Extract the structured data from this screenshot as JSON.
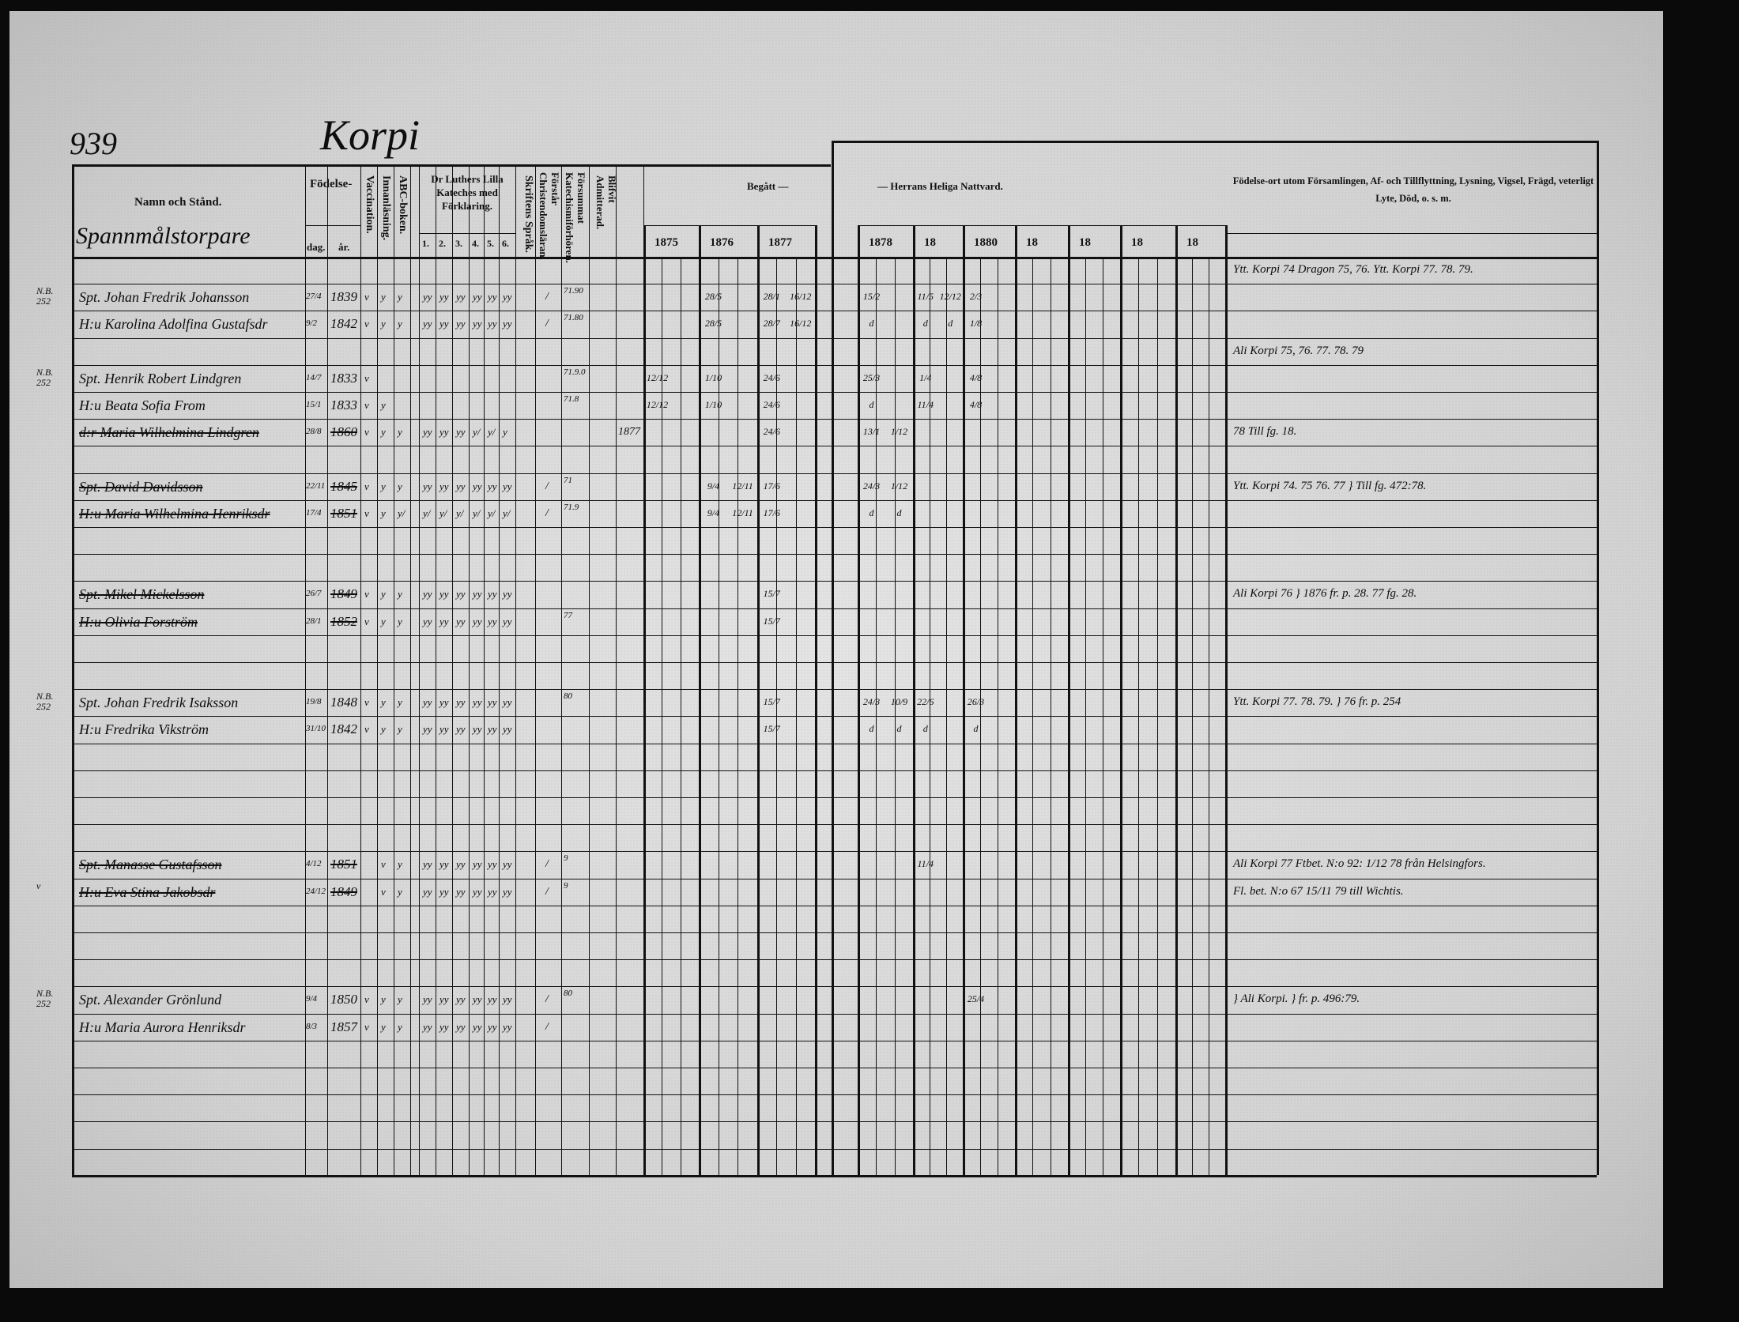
{
  "page": {
    "number": "939",
    "village": "Korpi",
    "category": "Spannmålstorpare"
  },
  "headers": {
    "name": "Namn och Stånd.",
    "birth": "Födelse-",
    "birth_day": "dag.",
    "birth_year": "år.",
    "vaccination": "Vaccination.",
    "reading": "Innanläsning.",
    "abc": "ABC-boken.",
    "catechism": "Dr Luthers Lilla Kateches med Förklaring.",
    "catechism_parts": [
      "1.",
      "2.",
      "3.",
      "4.",
      "5.",
      "6."
    ],
    "scripture_language": "Skriftens Språk.",
    "understands": "Förstår Christendomsläran.",
    "confirmation_school": "Försummat Katechismiförhören.",
    "admitted": "Blifvit Admitterad.",
    "communion_left": "Begått —",
    "communion_right": "— Herrans Heliga Nattvard.",
    "years_left": [
      "1875",
      "1876",
      "1877"
    ],
    "years_right": [
      "1878",
      "18",
      "1880",
      "18",
      "18",
      "18",
      "18"
    ],
    "remarks": "Födelse-ort utom Församlingen, Af- och Tillflyttning, Lysning, Vigsel, Frägd, veterligt Lyte, Död, o. s. m."
  },
  "margin_notes": [
    {
      "row": 1,
      "text": "N.B. 252"
    },
    {
      "row": 4,
      "text": "N.B. 252"
    },
    {
      "row": 16,
      "text": "N.B. 252"
    },
    {
      "row": 23,
      "text": "v"
    },
    {
      "row": 27,
      "text": "N.B. 252"
    }
  ],
  "persons": [
    {
      "row": 1,
      "name": "Spt. Johan Fredrik Johansson",
      "struck": false,
      "day": "27/4",
      "year": "1839",
      "marks": [
        "v",
        "y",
        "y",
        "yy",
        "yy",
        "yy",
        "yy",
        "yy",
        "yy"
      ],
      "understands": "/",
      "missed": "71.90"
    },
    {
      "row": 2,
      "name": "H:u Karolina Adolfina Gustafsdr",
      "struck": false,
      "day": "9/2",
      "year": "1842",
      "marks": [
        "v",
        "y",
        "y",
        "yy",
        "yy",
        "yy",
        "yy",
        "yy",
        "yy"
      ],
      "understands": "/",
      "missed": "71.80"
    },
    {
      "row": 4,
      "name": "Spt. Henrik Robert Lindgren",
      "struck": false,
      "day": "14/7",
      "year": "1833",
      "marks": [
        "v",
        "",
        "",
        "",
        "",
        "",
        "",
        "",
        ""
      ],
      "understands": "",
      "missed": "71.9.0"
    },
    {
      "row": 5,
      "name": "H:u Beata Sofia From",
      "struck": false,
      "day": "15/1",
      "year": "1833",
      "marks": [
        "v",
        "y",
        "",
        "",
        "",
        "",
        "",
        "",
        ""
      ],
      "understands": "",
      "missed": "71.8"
    },
    {
      "row": 6,
      "name": "d:r Maria Wilhelmina Lindgren",
      "struck": true,
      "day": "28/8",
      "year": "1860",
      "marks": [
        "v",
        "y",
        "y",
        "yy",
        "yy",
        "yy",
        "y/",
        "y/",
        "y"
      ],
      "understands": "",
      "missed": "",
      "admitted": "1877"
    },
    {
      "row": 8,
      "name": "Spt. David Davidsson",
      "struck": true,
      "day": "22/11",
      "year": "1845",
      "marks": [
        "v",
        "y",
        "y",
        "yy",
        "yy",
        "yy",
        "yy",
        "yy",
        "yy"
      ],
      "understands": "/",
      "missed": "71"
    },
    {
      "row": 9,
      "name": "H:u Maria Wilhelmina Henriksdr",
      "struck": true,
      "day": "17/4",
      "year": "1851",
      "marks": [
        "v",
        "y",
        "y/",
        "y/",
        "y/",
        "y/",
        "y/",
        "y/",
        "y/"
      ],
      "understands": "/",
      "missed": "71.9"
    },
    {
      "row": 12,
      "name": "Spt. Mikel Mickelsson",
      "struck": true,
      "day": "26/7",
      "year": "1849",
      "marks": [
        "v",
        "y",
        "y",
        "yy",
        "yy",
        "yy",
        "yy",
        "yy",
        "yy"
      ],
      "understands": "",
      "missed": ""
    },
    {
      "row": 13,
      "name": "H:u Olivia Forström",
      "struck": true,
      "day": "28/1",
      "year": "1852",
      "marks": [
        "v",
        "y",
        "y",
        "yy",
        "yy",
        "yy",
        "yy",
        "yy",
        "yy"
      ],
      "understands": "",
      "missed": "77"
    },
    {
      "row": 16,
      "name": "Spt. Johan Fredrik Isaksson",
      "struck": false,
      "day": "19/8",
      "year": "1848",
      "marks": [
        "v",
        "y",
        "y",
        "yy",
        "yy",
        "yy",
        "yy",
        "yy",
        "yy"
      ],
      "understands": "",
      "missed": "80"
    },
    {
      "row": 17,
      "name": "H:u Fredrika Vikström",
      "struck": false,
      "day": "31/10",
      "year": "1842",
      "marks": [
        "v",
        "y",
        "y",
        "yy",
        "yy",
        "yy",
        "yy",
        "yy",
        "yy"
      ],
      "understands": "",
      "missed": ""
    },
    {
      "row": 22,
      "name": "Spt. Manasse Gustafsson",
      "struck": true,
      "day": "4/12",
      "year": "1851",
      "marks": [
        "",
        "v",
        "y",
        "yy",
        "yy",
        "yy",
        "yy",
        "yy",
        "yy"
      ],
      "understands": "/",
      "missed": "9"
    },
    {
      "row": 23,
      "name": "H:u Eva Stina Jakobsdr",
      "struck": true,
      "day": "24/12",
      "year": "1849",
      "marks": [
        "",
        "v",
        "y",
        "yy",
        "yy",
        "yy",
        "yy",
        "yy",
        "yy"
      ],
      "understands": "/",
      "missed": "9"
    },
    {
      "row": 27,
      "name": "Spt. Alexander Grönlund",
      "struck": false,
      "day": "9/4",
      "year": "1850",
      "marks": [
        "v",
        "y",
        "y",
        "yy",
        "yy",
        "yy",
        "yy",
        "yy",
        "yy"
      ],
      "understands": "/",
      "missed": "80"
    },
    {
      "row": 28,
      "name": "H:u Maria Aurora Henriksdr",
      "struck": false,
      "day": "8/3",
      "year": "1857",
      "marks": [
        "v",
        "y",
        "y",
        "yy",
        "yy",
        "yy",
        "yy",
        "yy",
        "yy"
      ],
      "understands": "/",
      "missed": ""
    }
  ],
  "communion": [
    {
      "row": 1,
      "year": "1876",
      "slot": 0,
      "text": "28/5"
    },
    {
      "row": 1,
      "year": "1877",
      "slot": 0,
      "text": "28/1"
    },
    {
      "row": 1,
      "year": "1877",
      "slot": 1,
      "text": "16/12"
    },
    {
      "row": 1,
      "year": "1878",
      "slot": 0,
      "text": "15/2"
    },
    {
      "row": 1,
      "year": "1879",
      "slot": 0,
      "text": "11/5"
    },
    {
      "row": 1,
      "year": "1879",
      "slot": 1,
      "text": "12/12"
    },
    {
      "row": 1,
      "year": "1880",
      "slot": 0,
      "text": "2/3"
    },
    {
      "row": 2,
      "year": "1876",
      "slot": 0,
      "text": "28/5"
    },
    {
      "row": 2,
      "year": "1877",
      "slot": 0,
      "text": "28/7"
    },
    {
      "row": 2,
      "year": "1877",
      "slot": 1,
      "text": "16/12"
    },
    {
      "row": 2,
      "year": "1878",
      "slot": 0,
      "text": "d"
    },
    {
      "row": 2,
      "year": "1879",
      "slot": 0,
      "text": "d"
    },
    {
      "row": 2,
      "year": "1879",
      "slot": 1,
      "text": "d"
    },
    {
      "row": 2,
      "year": "1880",
      "slot": 0,
      "text": "1/8"
    },
    {
      "row": 4,
      "year": "1875",
      "slot": 0,
      "text": "12/12"
    },
    {
      "row": 4,
      "year": "1876",
      "slot": 0,
      "text": "1/10"
    },
    {
      "row": 4,
      "year": "1877",
      "slot": 0,
      "text": "24/6"
    },
    {
      "row": 4,
      "year": "1878",
      "slot": 0,
      "text": "25/3"
    },
    {
      "row": 4,
      "year": "1879",
      "slot": 0,
      "text": "1/4"
    },
    {
      "row": 4,
      "year": "1880",
      "slot": 0,
      "text": "4/8"
    },
    {
      "row": 5,
      "year": "1875",
      "slot": 0,
      "text": "12/12"
    },
    {
      "row": 5,
      "year": "1876",
      "slot": 0,
      "text": "1/10"
    },
    {
      "row": 5,
      "year": "1877",
      "slot": 0,
      "text": "24/6"
    },
    {
      "row": 5,
      "year": "1878",
      "slot": 0,
      "text": "d"
    },
    {
      "row": 5,
      "year": "1879",
      "slot": 0,
      "text": "11/4"
    },
    {
      "row": 5,
      "year": "1880",
      "slot": 0,
      "text": "4/8"
    },
    {
      "row": 6,
      "year": "1877",
      "slot": 0,
      "text": "24/6"
    },
    {
      "row": 6,
      "year": "1878",
      "slot": 0,
      "text": "13/1"
    },
    {
      "row": 6,
      "year": "1878",
      "slot": 1,
      "text": "1/12"
    },
    {
      "row": 8,
      "year": "1876",
      "slot": 0,
      "text": "9/4"
    },
    {
      "row": 8,
      "year": "1876",
      "slot": 1,
      "text": "12/11"
    },
    {
      "row": 8,
      "year": "1877",
      "slot": 0,
      "text": "17/6"
    },
    {
      "row": 8,
      "year": "1878",
      "slot": 0,
      "text": "24/3"
    },
    {
      "row": 8,
      "year": "1878",
      "slot": 1,
      "text": "1/12"
    },
    {
      "row": 9,
      "year": "1876",
      "slot": 0,
      "text": "9/4"
    },
    {
      "row": 9,
      "year": "1876",
      "slot": 1,
      "text": "12/11"
    },
    {
      "row": 9,
      "year": "1877",
      "slot": 0,
      "text": "17/6"
    },
    {
      "row": 9,
      "year": "1878",
      "slot": 0,
      "text": "d"
    },
    {
      "row": 9,
      "year": "1878",
      "slot": 1,
      "text": "d"
    },
    {
      "row": 12,
      "year": "1877",
      "slot": 0,
      "text": "15/7"
    },
    {
      "row": 13,
      "year": "1877",
      "slot": 0,
      "text": "15/7"
    },
    {
      "row": 16,
      "year": "1877",
      "slot": 0,
      "text": "15/7"
    },
    {
      "row": 16,
      "year": "1878",
      "slot": 0,
      "text": "24/3"
    },
    {
      "row": 16,
      "year": "1878",
      "slot": 1,
      "text": "10/9"
    },
    {
      "row": 16,
      "year": "1879",
      "slot": 0,
      "text": "22/6"
    },
    {
      "row": 16,
      "year": "1880",
      "slot": 0,
      "text": "26/3"
    },
    {
      "row": 17,
      "year": "1877",
      "slot": 0,
      "text": "15/7"
    },
    {
      "row": 17,
      "year": "1878",
      "slot": 0,
      "text": "d"
    },
    {
      "row": 17,
      "year": "1878",
      "slot": 1,
      "text": "d"
    },
    {
      "row": 17,
      "year": "1879",
      "slot": 0,
      "text": "d"
    },
    {
      "row": 17,
      "year": "1880",
      "slot": 0,
      "text": "d"
    },
    {
      "row": 22,
      "year": "1879",
      "slot": 0,
      "text": "11/4"
    },
    {
      "row": 27,
      "year": "1880",
      "slot": 0,
      "text": "25/4"
    }
  ],
  "remarks": [
    {
      "row": 0,
      "text": "Ytt. Korpi 74 Dragon 75, 76. Ytt. Korpi 77. 78. 79."
    },
    {
      "row": 3,
      "text": "Ali Korpi 75, 76. 77. 78. 79"
    },
    {
      "row": 6,
      "text": "78 Till fg. 18."
    },
    {
      "row": 8,
      "text": "Ytt. Korpi 74. 75 76. 77   } Till fg. 472:78."
    },
    {
      "row": 12,
      "text": "Ali Korpi 76  } 1876 fr. p. 28. 77 fg. 28."
    },
    {
      "row": 16,
      "text": "Ytt. Korpi 77. 78. 79.  } 76 fr. p. 254"
    },
    {
      "row": 22,
      "text": "Ali Korpi 77  Ftbet. N:o 92: 1/12 78 från Helsingfors."
    },
    {
      "row": 23,
      "text": "Fl. bet. N:o 67 15/11 79 till Wichtis."
    },
    {
      "row": 27,
      "text": "} Ali Korpi.  } fr. p. 496:79."
    }
  ]
}
